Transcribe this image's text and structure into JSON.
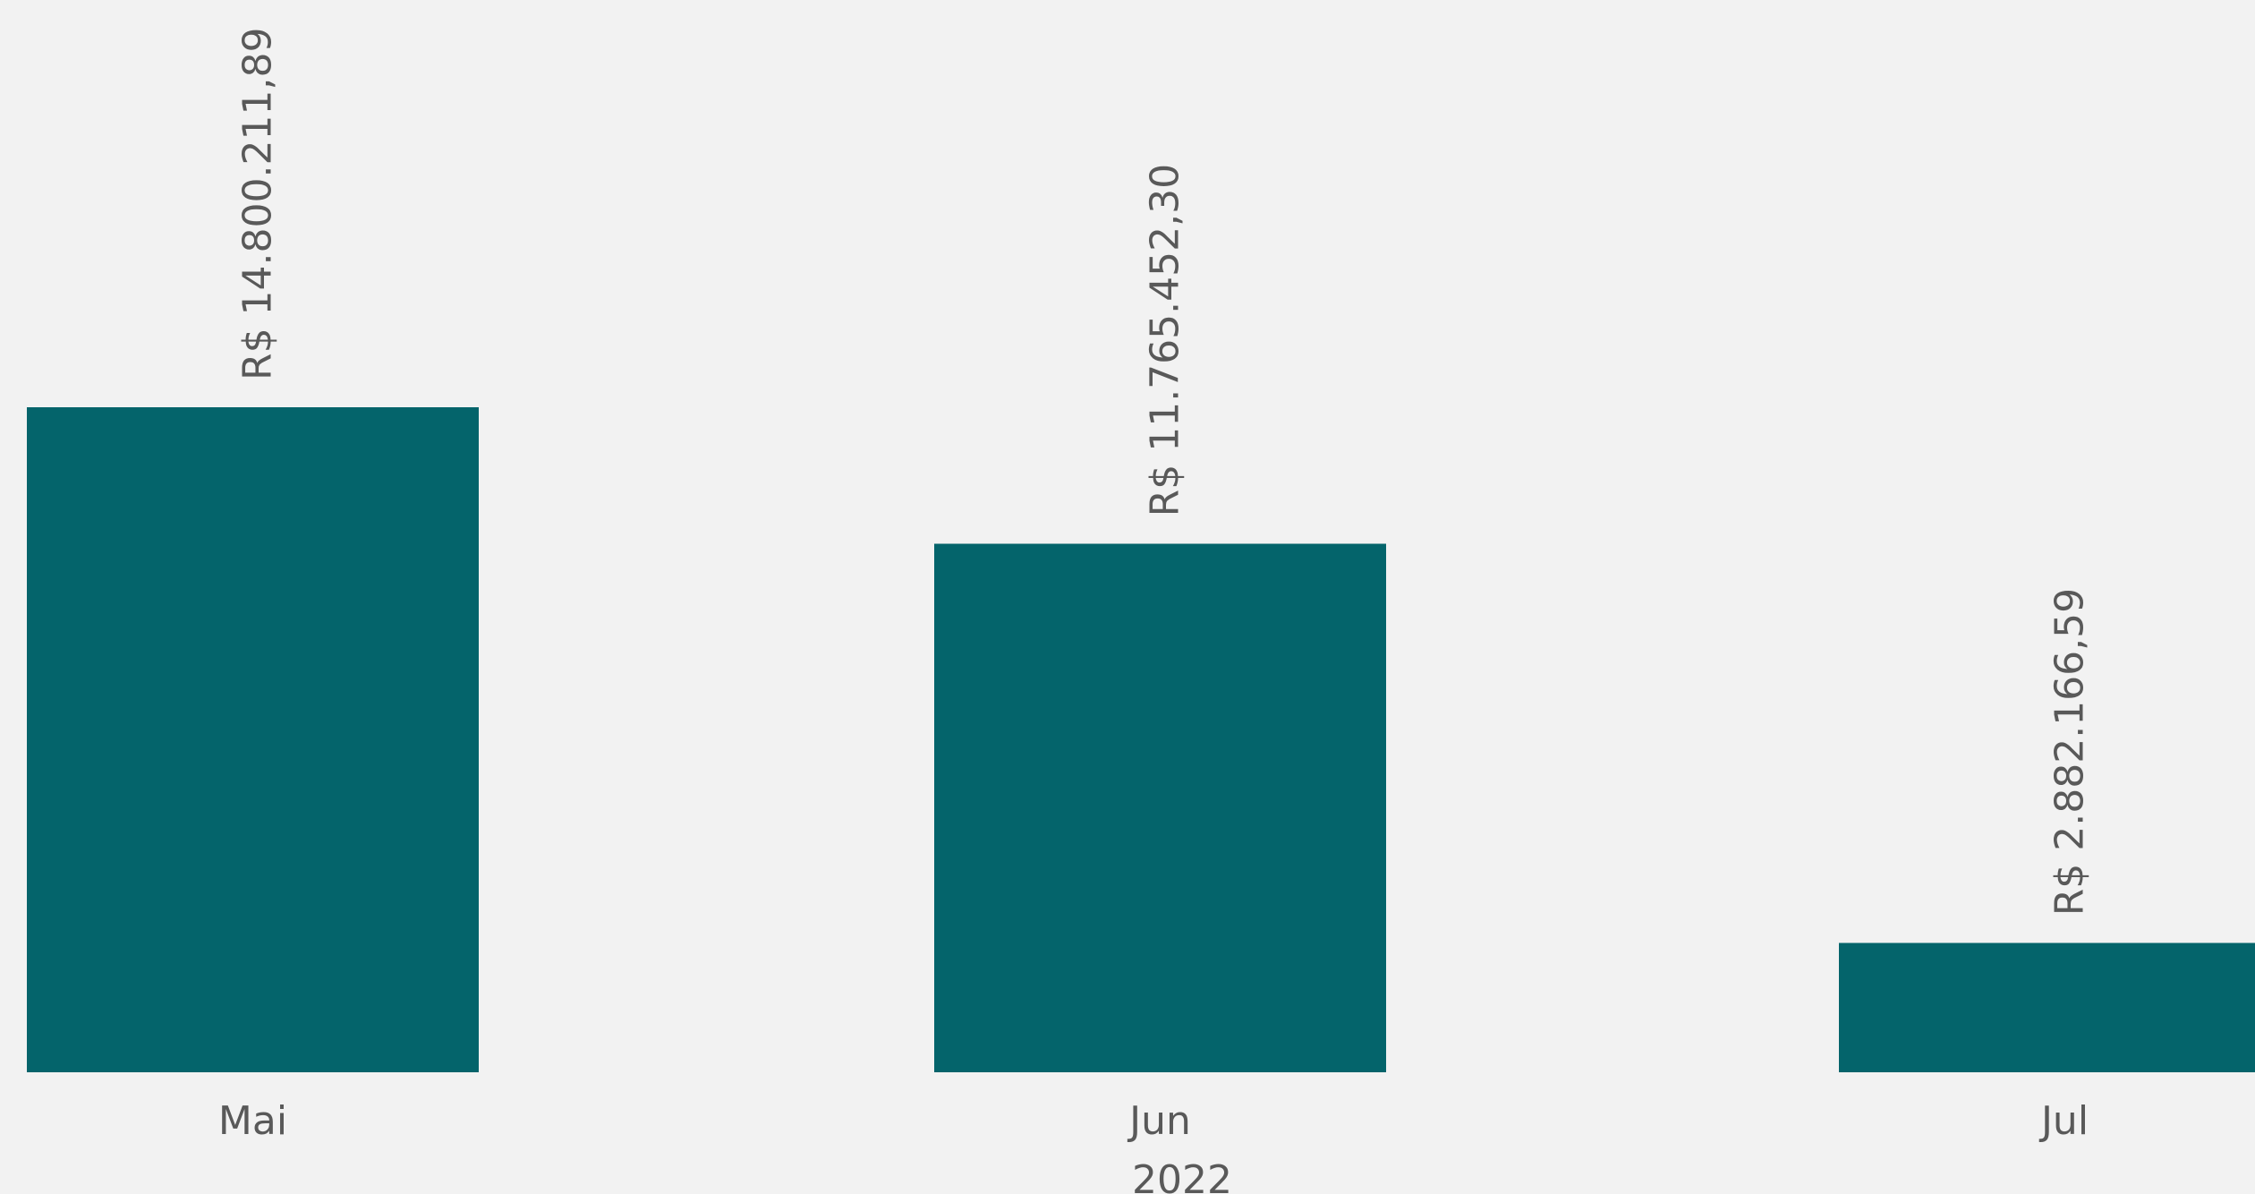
{
  "chart_data": {
    "type": "bar",
    "categories": [
      "Mai",
      "Jun",
      "Jul"
    ],
    "group_label": "2022",
    "values": [
      14800211.89,
      11765452.3,
      2882166.59
    ],
    "data_labels": [
      "R$ 14.800.211,89",
      "R$ 11.765.452,30",
      "R$ 2.882.166,59"
    ],
    "bar_color": "#04646b",
    "background_color": "#f2f2f2",
    "text_color": "#595959",
    "grid": false,
    "legend": "none"
  }
}
